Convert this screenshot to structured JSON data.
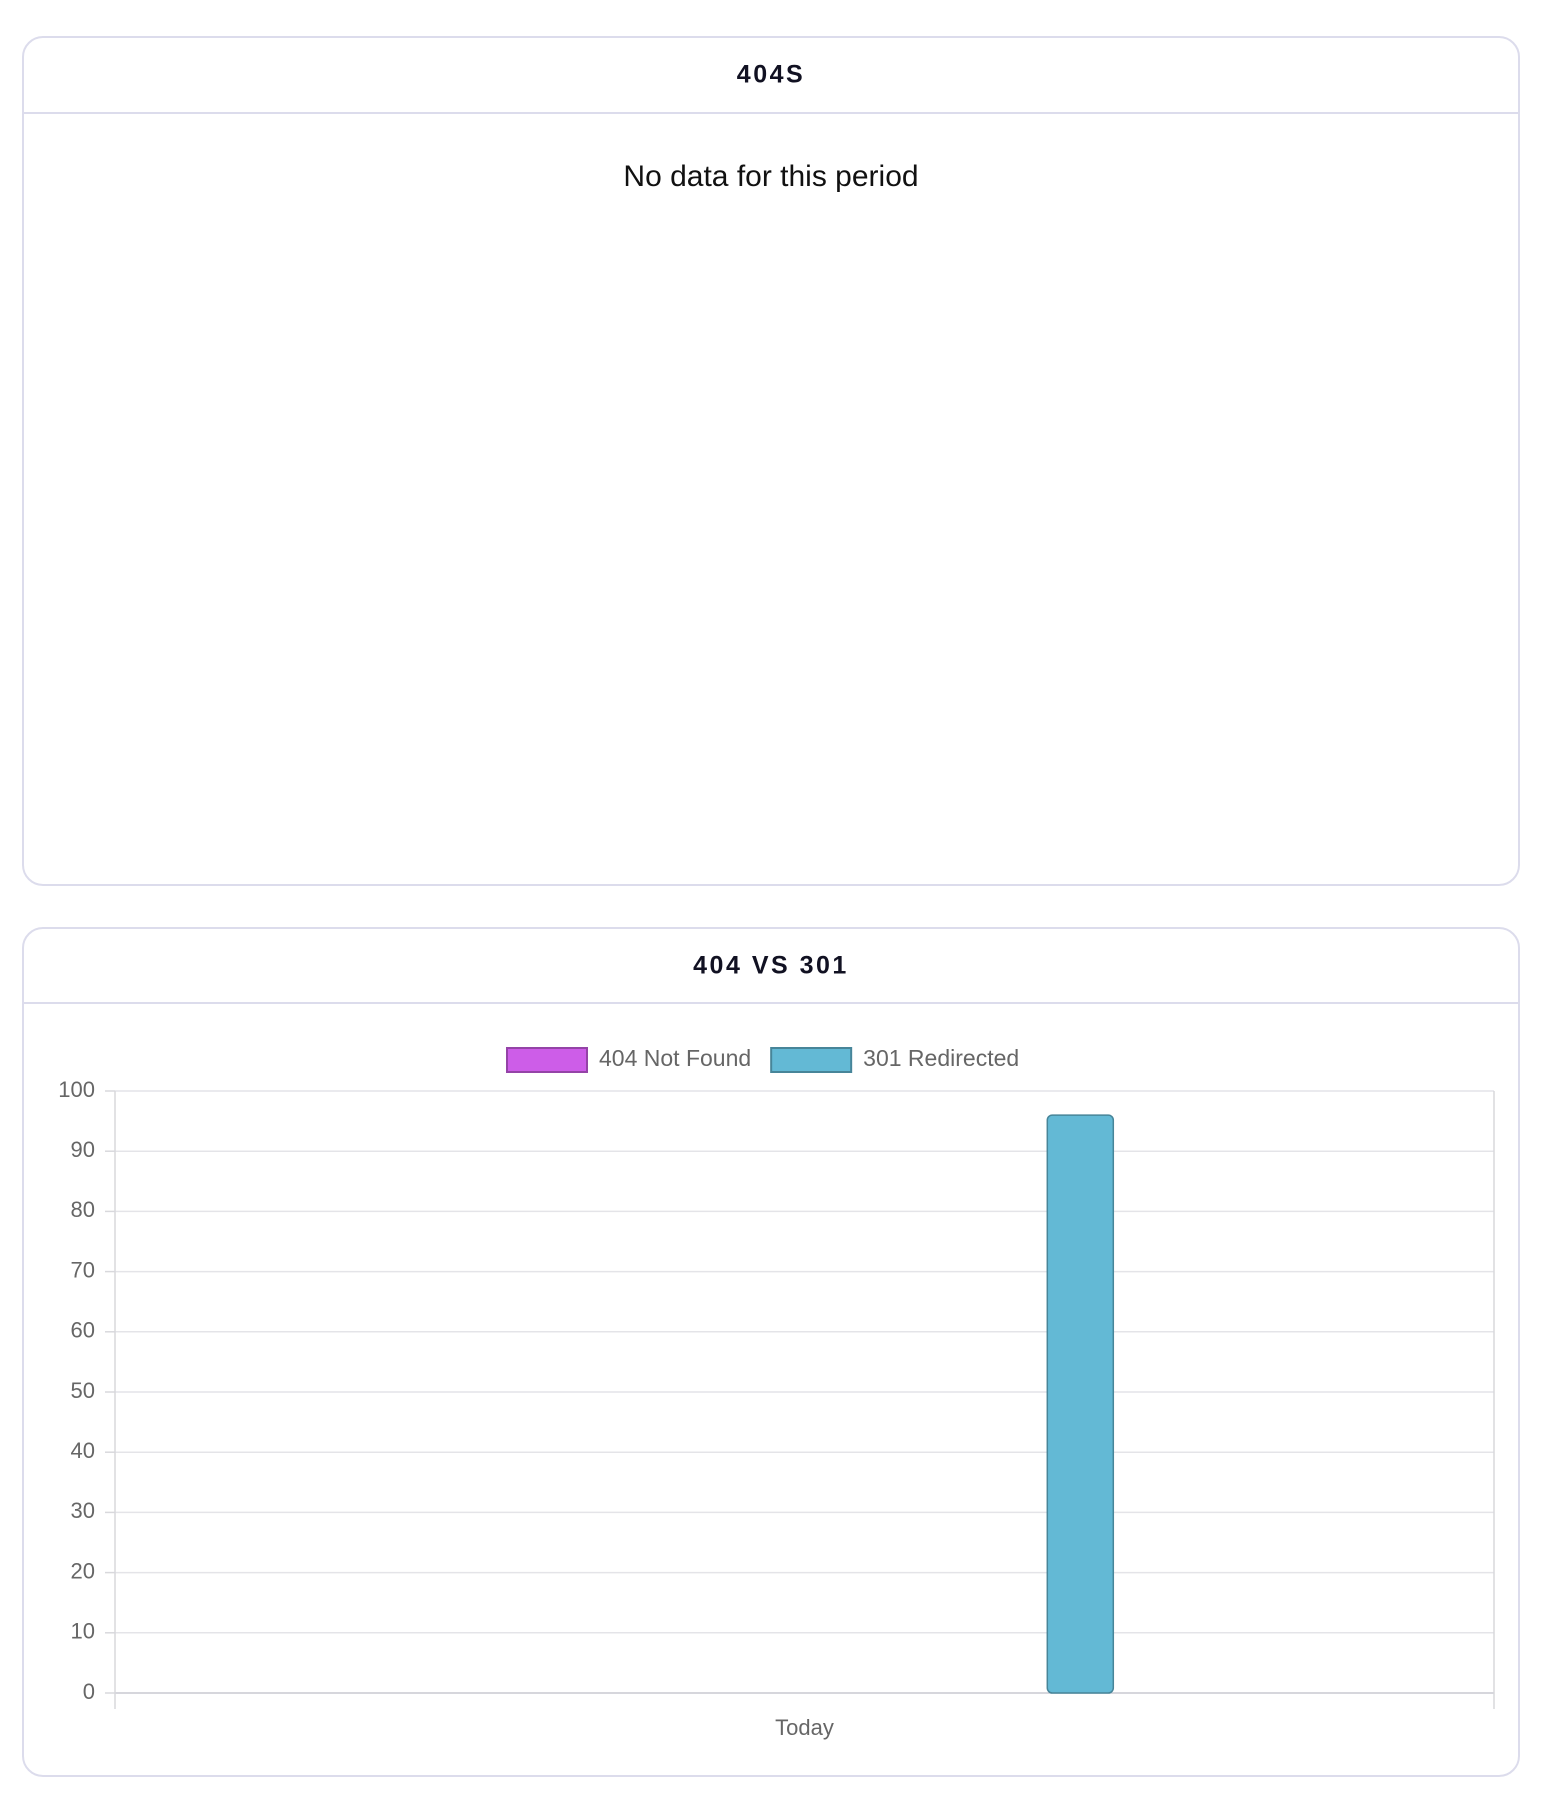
{
  "cards": [
    {
      "title": "404S",
      "message": "No data for this period"
    },
    {
      "title": "404 VS 301",
      "chart_data": {
        "type": "bar",
        "categories": [
          "Today"
        ],
        "series": [
          {
            "name": "404 Not Found",
            "color": "#cd5de8",
            "values": [
              0
            ]
          },
          {
            "name": "301 Redirected",
            "color": "#63b9d5",
            "values": [
              96
            ]
          }
        ],
        "ylim": [
          0,
          100
        ],
        "yticks": [
          0,
          10,
          20,
          30,
          40,
          50,
          60,
          70,
          80,
          90,
          100
        ],
        "grid": true,
        "legend": "top"
      }
    }
  ]
}
